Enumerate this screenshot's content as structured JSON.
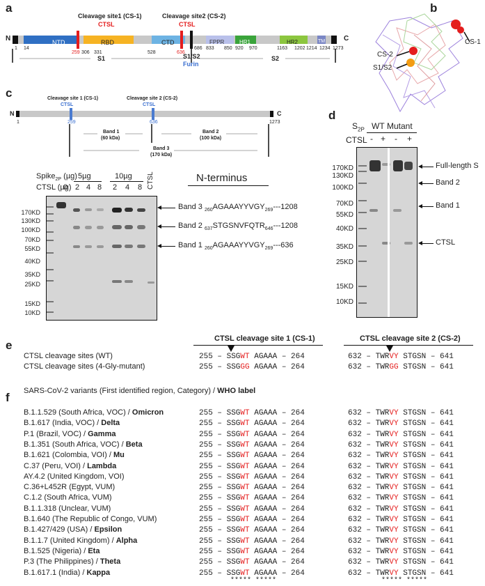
{
  "panels": {
    "a": "a",
    "b": "b",
    "c": "c",
    "d": "d",
    "e": "e",
    "f": "f"
  },
  "panel_a": {
    "cs1_label": "Cleavage site1 (CS-1)",
    "cs2_label": "Cleavage site2 (CS-2)",
    "ctsl": "CTSL",
    "n": "N",
    "c": "C",
    "domains": [
      "NTD",
      "RBD",
      "CTD",
      "FPPR",
      "HR1",
      "HR2",
      "TM"
    ],
    "positions": [
      "1",
      "14",
      "259",
      "306",
      "331",
      "528",
      "636",
      "686",
      "833",
      "850",
      "920",
      "970",
      "1163",
      "1202",
      "1214",
      "1234",
      "1273"
    ],
    "s1": "S1",
    "s2": "S2",
    "s1s2": "S1/S2",
    "furin": "Furin"
  },
  "panel_b": {
    "cs1": "CS-1",
    "cs2": "CS-2",
    "s1s2": "S1/S2"
  },
  "panel_c": {
    "cs1_label": "Cleavage site 1 (CS-1)",
    "cs2_label": "Cleavage site 2 (CS-2)",
    "ctsl": "CTSL",
    "n": "N",
    "c": "C",
    "pos_1": "1",
    "pos_259": "259",
    "pos_636": "636",
    "pos_1273": "1273",
    "band1": "Band 1",
    "band1_kda": "(60 kDa)",
    "band2": "Band 2",
    "band2_kda": "(100 kDa)",
    "band3": "Band 3",
    "band3_kda": "(170 kDa)",
    "spike_label": "Spike",
    "spike_sub": "2P",
    "spike_unit": "(µg)",
    "ctsl_ug": "CTSL (µg)",
    "lane_zero": "0",
    "group_5": "5µg",
    "group_10": "10µg",
    "lane_vals": [
      "2",
      "4",
      "8",
      "2",
      "4",
      "8"
    ],
    "ctsl_lane": "CTSL",
    "nterm_title": "N-terminus",
    "markers": [
      "170KD",
      "130KD",
      "100KD",
      "70KD",
      "55KD",
      "40KD",
      "35KD",
      "25KD",
      "15KD",
      "10KD"
    ],
    "band_lines": [
      {
        "name": "Band 3",
        "start": "260",
        "seq": "AGAAAYYVGY",
        "end": "269",
        "tail": "---1208"
      },
      {
        "name": "Band 2",
        "start": "637",
        "seq": "STGSNVFQTR",
        "end": "646",
        "tail": "---1208"
      },
      {
        "name": "Band 1",
        "start": "260",
        "seq": "AGAAAYYVGY",
        "end": "269",
        "tail": "---636"
      }
    ]
  },
  "panel_d": {
    "s2p": "S",
    "s2p_sub": "2P",
    "wt": "WT",
    "mutant": "Mutant",
    "ctsl": "CTSL",
    "signs": [
      "-",
      "+",
      "-",
      "+"
    ],
    "markers": [
      "170KD",
      "130KD",
      "100KD",
      "70KD",
      "55KD",
      "40KD",
      "35KD",
      "25KD",
      "15KD",
      "10KD"
    ],
    "labels": [
      "Full-length S",
      "Band 2",
      "Band 1",
      "CTSL"
    ]
  },
  "panel_e": {
    "header1": "CTSL cleavage site 1 (CS-1)",
    "header2": "CTSL cleavage site 2 (CS-2)",
    "rows": [
      {
        "label": "CTSL cleavage sites (WT)",
        "s1a": "255 – SSG",
        "s1b": "WT",
        "s1c": " AGAAA – 264",
        "s2a": "632 – TWR",
        "s2b": "VY",
        "s2c": " STGSN – 641"
      },
      {
        "label": "CTSL cleavage sites (4-Gly-mutant)",
        "s1a": "255 – SSG",
        "s1b": "GG",
        "s1c": " AGAAA – 264",
        "s2a": "632 – TWR",
        "s2b": "GG",
        "s2c": " STGSN – 641"
      }
    ]
  },
  "panel_f": {
    "title_plain": "SARS-CoV-2 variants (First identified region, Category) / ",
    "title_bold": "WHO label",
    "seq1a": "255 – SSG",
    "seq1b": "WT",
    "seq1c": " AGAAA – 264",
    "seq2a": "632 – TWR",
    "seq2b": "VY",
    "seq2c": " STGSN – 641",
    "stars": "***** *****",
    "variants": [
      {
        "name": "B.1.1.529 (South Africa, VOC) / ",
        "who": "Omicron"
      },
      {
        "name": "B.1.617 (India, VOC) / ",
        "who": "Delta"
      },
      {
        "name": "P.1 (Brazil, VOC) / ",
        "who": "Gamma"
      },
      {
        "name": "B.1.351 (South Africa, VOC) / ",
        "who": "Beta"
      },
      {
        "name": "B.1.621 (Colombia, VOI) / ",
        "who": "Mu"
      },
      {
        "name": "C.37 (Peru, VOI) / ",
        "who": "Lambda"
      },
      {
        "name": "AY.4.2 (United Kingdom, VOI)",
        "who": ""
      },
      {
        "name": "C.36+L452R (Egypt, VUM)",
        "who": ""
      },
      {
        "name": "C.1.2 (South Africa, VUM)",
        "who": ""
      },
      {
        "name": "B.1.1.318 (Unclear, VUM)",
        "who": ""
      },
      {
        "name": "B.1.640 (The Republic of Congo, VUM)",
        "who": ""
      },
      {
        "name": "B.1.427/429 (USA) / ",
        "who": "Epsilon"
      },
      {
        "name": "B.1.1.7 (United Kingdom) / ",
        "who": "Alpha"
      },
      {
        "name": "B.1.525 (Nigeria) / ",
        "who": "Eta"
      },
      {
        "name": "P.3 (The Philippines) / ",
        "who": "Theta"
      },
      {
        "name": "B.1.617.1 (India) / ",
        "who": "Kappa"
      }
    ]
  }
}
